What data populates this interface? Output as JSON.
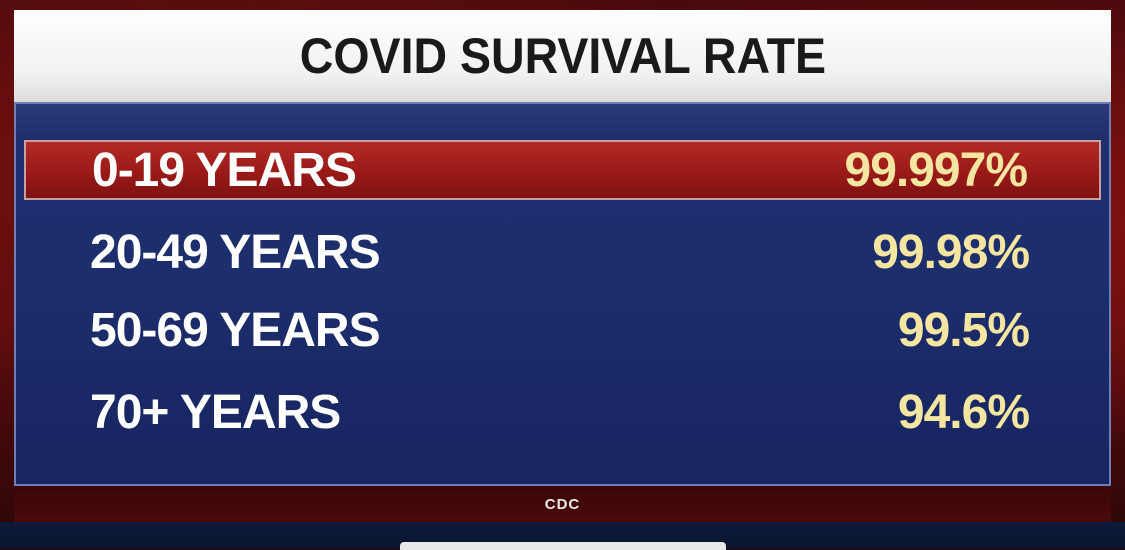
{
  "title": "COVID SURVIVAL RATE",
  "rows": [
    {
      "label": "0-19 YEARS",
      "value": "99.997%"
    },
    {
      "label": "20-49 YEARS",
      "value": "99.98%"
    },
    {
      "label": "50-69 YEARS",
      "value": "99.5%"
    },
    {
      "label": "70+ YEARS",
      "value": "94.6%"
    }
  ],
  "highlighted_row": 0,
  "source": "CDC",
  "colors": {
    "panel": "#1e2f6e",
    "highlight": "#a8201c",
    "value_text": "#f4e6a0",
    "label_text": "#ffffff",
    "title_text": "#1a1a1a"
  }
}
